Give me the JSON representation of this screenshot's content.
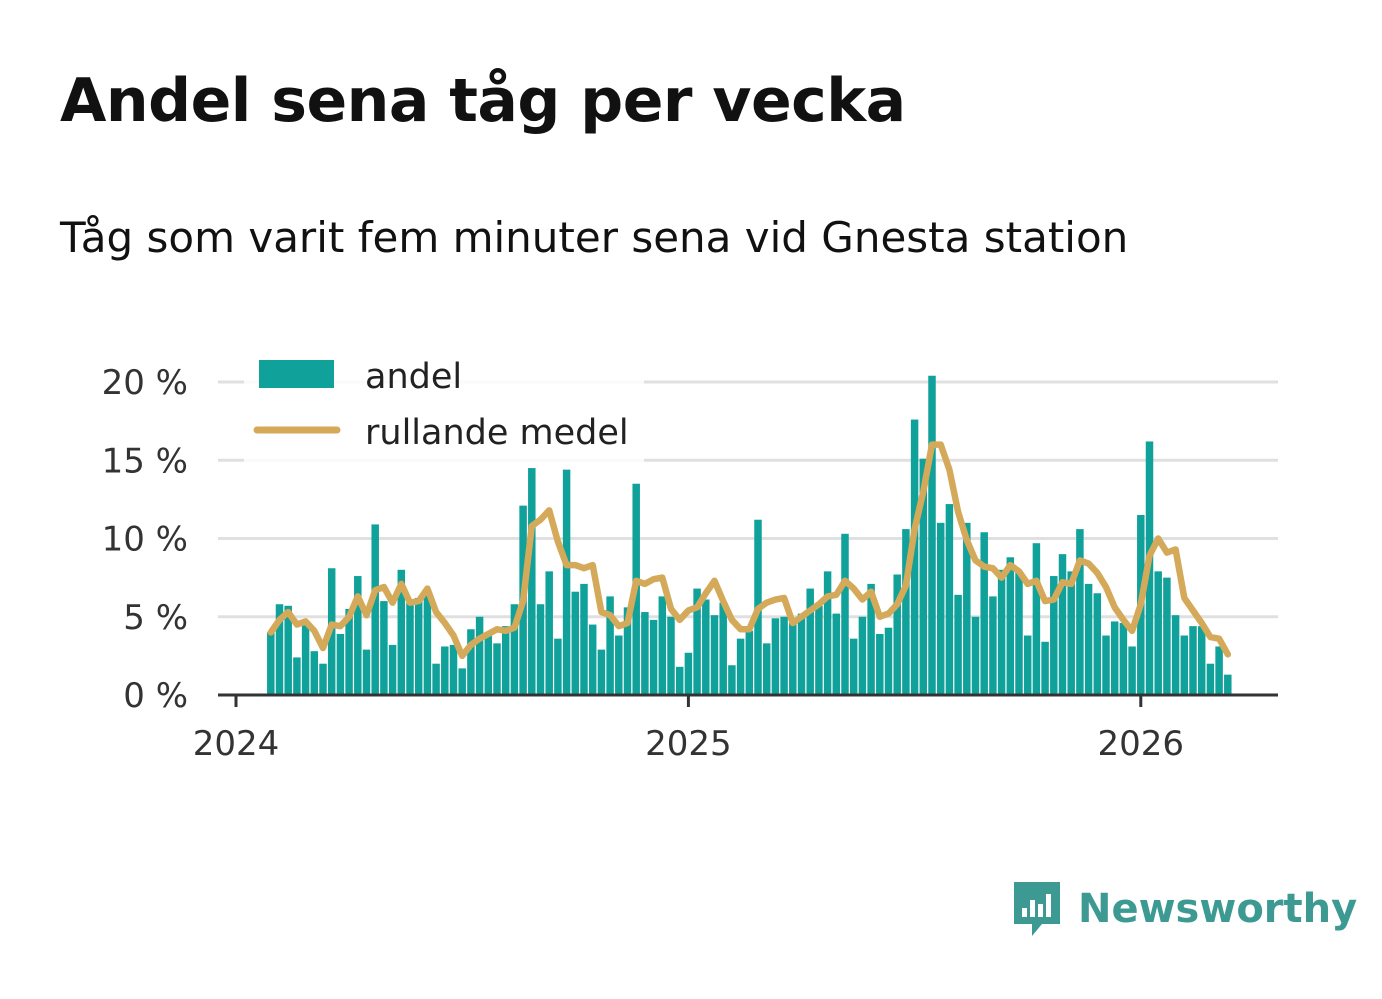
{
  "header": {
    "title": "Andel sena tåg per vecka",
    "subtitle": "Tåg som varit fem minuter sena vid Gnesta station"
  },
  "brand": {
    "name": "Newsworthy"
  },
  "colors": {
    "bars": "#0fa19a",
    "line": "#d4aa5a",
    "axis": "#333333",
    "grid": "#e0e0e0"
  },
  "chart_data": {
    "type": "bar",
    "title": "Andel sena tåg per vecka",
    "subtitle": "Tåg som varit fem minuter sena vid Gnesta station",
    "xlabel": "",
    "ylabel": "",
    "ylim": [
      0,
      20
    ],
    "y_ticks": [
      0,
      5,
      10,
      15,
      20
    ],
    "y_tick_labels": [
      "0 %",
      "5 %",
      "10 %",
      "15 %",
      "20 %"
    ],
    "x_ticks": [
      0,
      52,
      104
    ],
    "x_tick_labels": [
      "2024",
      "2025",
      "2026"
    ],
    "first_week_offset": 4,
    "grid": true,
    "legend": {
      "position": "top-left",
      "entries": [
        "andel",
        "rullande medel"
      ]
    },
    "series": [
      {
        "name": "andel",
        "type": "bar",
        "values": [
          4.0,
          5.8,
          5.7,
          2.4,
          4.7,
          2.8,
          2.0,
          8.1,
          3.9,
          5.5,
          7.6,
          2.9,
          10.9,
          6.0,
          3.2,
          8.0,
          5.9,
          6.2,
          6.6,
          2.0,
          3.1,
          3.2,
          1.7,
          4.2,
          5.0,
          4.0,
          3.3,
          4.4,
          5.8,
          12.1,
          14.5,
          5.8,
          7.9,
          3.6,
          14.4,
          6.6,
          7.1,
          4.5,
          2.9,
          6.3,
          3.8,
          5.6,
          13.5,
          5.3,
          4.8,
          6.3,
          5.0,
          1.8,
          2.7,
          6.8,
          6.1,
          5.1,
          5.9,
          1.9,
          3.6,
          4.1,
          11.2,
          3.3,
          4.9,
          5.0,
          4.6,
          5.2,
          6.8,
          5.7,
          7.9,
          5.2,
          10.3,
          3.6,
          5.0,
          7.1,
          3.9,
          4.3,
          7.7,
          10.6,
          17.6,
          15.1,
          20.4,
          11.0,
          12.2,
          6.4,
          11.0,
          5.0,
          10.4,
          6.3,
          8.0,
          8.8,
          7.9,
          3.8,
          9.7,
          3.4,
          7.6,
          9.0,
          7.9,
          10.6,
          7.1,
          6.5,
          3.8,
          4.7,
          4.6,
          3.1,
          11.5,
          16.2,
          7.9,
          7.5,
          5.1,
          3.8,
          4.4,
          4.4,
          2.0,
          3.1,
          1.3
        ]
      },
      {
        "name": "rullande medel",
        "type": "line",
        "values": [
          4.0,
          4.8,
          5.3,
          4.5,
          4.7,
          4.1,
          3.0,
          4.5,
          4.4,
          5.0,
          6.3,
          5.1,
          6.7,
          6.9,
          5.9,
          7.1,
          5.9,
          6.0,
          6.8,
          5.3,
          4.6,
          3.8,
          2.5,
          3.2,
          3.6,
          3.9,
          4.2,
          4.1,
          4.3,
          6.0,
          10.8,
          11.2,
          11.8,
          9.8,
          8.3,
          8.3,
          8.1,
          8.3,
          5.3,
          5.1,
          4.4,
          4.6,
          7.3,
          7.1,
          7.4,
          7.5,
          5.5,
          4.8,
          5.4,
          5.6,
          6.5,
          7.3,
          6.0,
          4.8,
          4.2,
          4.2,
          5.5,
          5.9,
          6.1,
          6.2,
          4.6,
          5.0,
          5.4,
          5.8,
          6.3,
          6.4,
          7.3,
          6.8,
          6.1,
          6.6,
          5.0,
          5.2,
          5.8,
          7.0,
          10.6,
          13.0,
          16.0,
          16.0,
          14.4,
          11.7,
          9.9,
          8.6,
          8.2,
          8.1,
          7.5,
          8.3,
          7.9,
          7.1,
          7.3,
          6.0,
          6.1,
          7.2,
          7.1,
          8.6,
          8.4,
          7.8,
          6.9,
          5.6,
          4.8,
          4.1,
          5.8,
          8.9,
          10.0,
          9.1,
          9.3,
          6.2,
          5.4,
          4.6,
          3.7,
          3.6,
          2.6
        ]
      }
    ]
  }
}
